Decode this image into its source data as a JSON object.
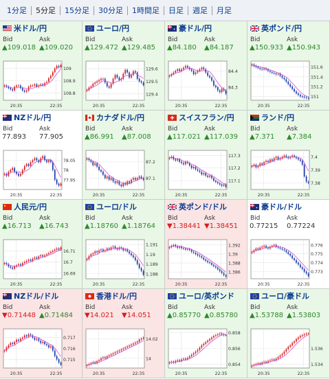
{
  "tabs": [
    {
      "label": "1分足",
      "active": false
    },
    {
      "label": "5分足",
      "active": true
    },
    {
      "label": "15分足",
      "active": false
    },
    {
      "label": "30分足",
      "active": false
    },
    {
      "label": "1時間足",
      "active": false
    },
    {
      "label": "日足",
      "active": false
    },
    {
      "label": "週足",
      "active": false
    },
    {
      "label": "月足",
      "active": false
    }
  ],
  "labels": {
    "bid": "Bid",
    "ask": "Ask"
  },
  "colors": {
    "up": "#2c8a2c",
    "down": "#d42020",
    "candle_up": "#d42020",
    "candle_down": "#1f3fa8",
    "ma": "#d24bd2"
  },
  "pairs": [
    {
      "name": "米ドル/円",
      "flag": "us",
      "trend": "up",
      "bid": "▲109.018",
      "ask": "▲109.020",
      "bid_dir": "up",
      "ask_dir": "up",
      "x_labels": [
        "20:35",
        "22:35"
      ],
      "y_labels": [
        "109",
        "108.9",
        "108.8"
      ],
      "ylim": [
        108.74,
        109.06
      ],
      "series": [
        108.86,
        108.85,
        108.84,
        108.83,
        108.82,
        108.85,
        108.86,
        108.86,
        108.84,
        108.82,
        108.81,
        108.82,
        108.85,
        108.86,
        108.86,
        108.87,
        108.85,
        108.86,
        108.87,
        108.86,
        108.88,
        108.89,
        108.92,
        108.94,
        108.97,
        109.0,
        109.02,
        109.01,
        109.03
      ]
    },
    {
      "name": "ユーロ/円",
      "flag": "eu",
      "trend": "up",
      "bid": "▲129.472",
      "ask": "▲129.485",
      "bid_dir": "up",
      "ask_dir": "up",
      "x_labels": [
        "20:35",
        "22:35"
      ],
      "y_labels": [
        "129.6",
        "129.5",
        "129.4"
      ],
      "ylim": [
        129.35,
        129.66
      ],
      "series": [
        129.43,
        129.45,
        129.46,
        129.48,
        129.49,
        129.5,
        129.51,
        129.52,
        129.52,
        129.49,
        129.46,
        129.45,
        129.48,
        129.52,
        129.55,
        129.53,
        129.51,
        129.52,
        129.56,
        129.59,
        129.57,
        129.53,
        129.55,
        129.58,
        129.57,
        129.52,
        129.5,
        129.49,
        129.47
      ]
    },
    {
      "name": "豪ドル/円",
      "flag": "au",
      "trend": "up",
      "bid": "▲84.180",
      "ask": "▲84.187",
      "bid_dir": "up",
      "ask_dir": "up",
      "x_labels": [
        "20:35",
        "22:35"
      ],
      "y_labels": [
        "84.4",
        "84.3"
      ],
      "ylim": [
        84.22,
        84.46
      ],
      "series": [
        84.37,
        84.38,
        84.39,
        84.4,
        84.41,
        84.4,
        84.41,
        84.42,
        84.43,
        84.42,
        84.41,
        84.4,
        84.38,
        84.39,
        84.4,
        84.41,
        84.42,
        84.41,
        84.39,
        84.37,
        84.36,
        84.34,
        84.31,
        84.3,
        84.28,
        84.27,
        84.29,
        84.28,
        84.26
      ]
    },
    {
      "name": "英ポンド/円",
      "flag": "gb",
      "trend": "up",
      "bid": "▲150.933",
      "ask": "▲150.943",
      "bid_dir": "up",
      "ask_dir": "up",
      "x_labels": [
        "20:35",
        "22:35"
      ],
      "y_labels": [
        "151.6",
        "151.4",
        "151.2",
        "151"
      ],
      "ylim": [
        150.92,
        151.72
      ],
      "series": [
        151.65,
        151.62,
        151.6,
        151.58,
        151.56,
        151.55,
        151.57,
        151.55,
        151.52,
        151.5,
        151.48,
        151.47,
        151.45,
        151.46,
        151.42,
        151.38,
        151.35,
        151.3,
        151.25,
        151.2,
        151.15,
        151.1,
        151.06,
        151.03,
        151.0,
        150.99,
        150.98,
        150.97,
        150.96
      ]
    },
    {
      "name": "NZドル/円",
      "flag": "nz",
      "trend": "neutral",
      "bid": "77.893",
      "ask": "77.905",
      "bid_dir": "flat",
      "ask_dir": "flat",
      "x_labels": [
        "20:35",
        "22:35"
      ],
      "y_labels": [
        "78.05",
        "78",
        "77.95"
      ],
      "ylim": [
        77.9,
        78.1
      ],
      "series": [
        77.98,
        77.97,
        77.99,
        78.0,
        78.01,
        77.99,
        77.98,
        77.97,
        77.98,
        78.0,
        78.02,
        78.03,
        78.02,
        78.04,
        78.05,
        78.06,
        78.05,
        78.04,
        78.06,
        78.07,
        78.05,
        78.04,
        78.05,
        78.04,
        78.0,
        77.95,
        77.93,
        77.92,
        77.93
      ]
    },
    {
      "name": "カナダドル/円",
      "flag": "ca",
      "trend": "up",
      "bid": "▲86.991",
      "ask": "▲87.008",
      "bid_dir": "up",
      "ask_dir": "up",
      "x_labels": [
        "20:35",
        "22:35"
      ],
      "y_labels": [
        "87.2",
        "87.1"
      ],
      "ylim": [
        87.03,
        87.27
      ],
      "series": [
        87.22,
        87.21,
        87.2,
        87.18,
        87.19,
        87.17,
        87.15,
        87.14,
        87.12,
        87.1,
        87.11,
        87.09,
        87.1,
        87.08,
        87.07,
        87.08,
        87.06,
        87.05,
        87.07,
        87.06,
        87.08,
        87.07,
        87.09,
        87.1,
        87.09,
        87.1,
        87.11,
        87.1,
        87.09
      ]
    },
    {
      "name": "スイスフラン/円",
      "flag": "ch",
      "trend": "up",
      "bid": "▲117.021",
      "ask": "▲117.039",
      "bid_dir": "up",
      "ask_dir": "up",
      "x_labels": [
        "20:35",
        "22:35"
      ],
      "y_labels": [
        "117.3",
        "117.2",
        "117.1"
      ],
      "ylim": [
        117.03,
        117.34
      ],
      "series": [
        117.28,
        117.29,
        117.27,
        117.26,
        117.27,
        117.25,
        117.24,
        117.23,
        117.25,
        117.24,
        117.22,
        117.2,
        117.21,
        117.19,
        117.18,
        117.17,
        117.15,
        117.16,
        117.14,
        117.13,
        117.14,
        117.12,
        117.1,
        117.09,
        117.08,
        117.07,
        117.06,
        117.07,
        117.05
      ]
    },
    {
      "name": "ランド/円",
      "flag": "za",
      "trend": "up",
      "bid": "▲7.371",
      "ask": "▲7.384",
      "bid_dir": "up",
      "ask_dir": "up",
      "x_labels": [
        "20:35",
        "22:35"
      ],
      "y_labels": [
        "7.4",
        "7.39",
        "7.38"
      ],
      "ylim": [
        7.375,
        7.405
      ],
      "series": [
        7.393,
        7.394,
        7.392,
        7.393,
        7.395,
        7.394,
        7.396,
        7.397,
        7.396,
        7.398,
        7.397,
        7.399,
        7.4,
        7.398,
        7.399,
        7.4,
        7.401,
        7.4,
        7.399,
        7.4,
        7.401,
        7.4,
        7.399,
        7.398,
        7.397,
        7.394,
        7.385,
        7.381,
        7.38
      ]
    },
    {
      "name": "人民元/円",
      "flag": "cn",
      "trend": "up",
      "bid": "▲16.713",
      "ask": "▲16.743",
      "bid_dir": "up",
      "ask_dir": "up",
      "x_labels": [
        "20:35",
        "22:35"
      ],
      "y_labels": [
        "16.71",
        "16.7",
        "16.69"
      ],
      "ylim": [
        16.685,
        16.72
      ],
      "series": [
        16.699,
        16.698,
        16.696,
        16.695,
        16.694,
        16.696,
        16.697,
        16.698,
        16.697,
        16.699,
        16.7,
        16.701,
        16.702,
        16.701,
        16.703,
        16.704,
        16.703,
        16.705,
        16.706,
        16.705,
        16.706,
        16.707,
        16.708,
        16.709,
        16.71,
        16.711,
        16.712,
        16.711,
        16.713
      ]
    },
    {
      "name": "ユーロ/ドル",
      "flag": "eu",
      "trend": "up",
      "bid": "▲1.18760",
      "ask": "▲1.18764",
      "bid_dir": "up",
      "ask_dir": "up",
      "x_labels": [
        "20:35",
        "22:35"
      ],
      "y_labels": [
        "1.191",
        "1.19",
        "1.189",
        "1.188"
      ],
      "ylim": [
        1.1875,
        1.1915
      ],
      "series": [
        1.1895,
        1.1898,
        1.19,
        1.1901,
        1.1903,
        1.1902,
        1.1904,
        1.1905,
        1.1903,
        1.1904,
        1.1906,
        1.1905,
        1.1907,
        1.1908,
        1.1906,
        1.1905,
        1.1907,
        1.1906,
        1.1904,
        1.1905,
        1.1903,
        1.1901,
        1.1899,
        1.1897,
        1.1894,
        1.189,
        1.1886,
        1.1883,
        1.1879
      ]
    },
    {
      "name": "英ポンド/ドル",
      "flag": "gb",
      "trend": "down",
      "bid": "▼1.38441",
      "ask": "▼1.38451",
      "bid_dir": "down",
      "ask_dir": "down",
      "x_labels": [
        "20:35",
        "22:35"
      ],
      "y_labels": [
        "1.392",
        "1.39",
        "1.388",
        "1.386"
      ],
      "ylim": [
        1.3845,
        1.3932
      ],
      "series": [
        1.3915,
        1.3918,
        1.392,
        1.3917,
        1.3914,
        1.3916,
        1.3913,
        1.3912,
        1.391,
        1.3911,
        1.3909,
        1.3905,
        1.3903,
        1.39,
        1.3897,
        1.3895,
        1.3892,
        1.3888,
        1.3885,
        1.3882,
        1.388,
        1.3876,
        1.3873,
        1.387,
        1.3866,
        1.3862,
        1.3858,
        1.3853,
        1.385
      ]
    },
    {
      "name": "豪ドル/ドル",
      "flag": "au",
      "trend": "neutral",
      "bid": "0.77215",
      "ask": "0.77224",
      "bid_dir": "flat",
      "ask_dir": "flat",
      "x_labels": [
        "20:35",
        "22:35"
      ],
      "y_labels": [
        "0.776",
        "0.775",
        "0.774",
        "0.773"
      ],
      "ylim": [
        0.7722,
        0.7766
      ],
      "series": [
        0.7752,
        0.7754,
        0.7756,
        0.7755,
        0.7757,
        0.7758,
        0.7759,
        0.7757,
        0.7756,
        0.7758,
        0.7759,
        0.776,
        0.7758,
        0.7757,
        0.7756,
        0.7755,
        0.7754,
        0.7752,
        0.775,
        0.7748,
        0.7745,
        0.7743,
        0.774,
        0.7738,
        0.7735,
        0.7733,
        0.773,
        0.7728,
        0.7725
      ]
    },
    {
      "name": "NZドル/ドル",
      "flag": "nz",
      "trend": "down",
      "bid": "▼0.71448",
      "ask": "▲0.71484",
      "bid_dir": "down",
      "ask_dir": "up",
      "x_labels": [
        "20:35",
        "22:35"
      ],
      "y_labels": [
        "0.717",
        "0.716",
        "0.715"
      ],
      "ylim": [
        0.7142,
        0.7178
      ],
      "series": [
        0.7158,
        0.7161,
        0.7163,
        0.7165,
        0.7164,
        0.7166,
        0.7168,
        0.7167,
        0.7169,
        0.717,
        0.7172,
        0.7171,
        0.7173,
        0.7172,
        0.717,
        0.7168,
        0.7169,
        0.7167,
        0.7165,
        0.7166,
        0.7164,
        0.7163,
        0.7161,
        0.7162,
        0.7158,
        0.7153,
        0.715,
        0.7147,
        0.7145
      ]
    },
    {
      "name": "香港ドル/円",
      "flag": "hk",
      "trend": "down",
      "bid": "▼14.021",
      "ask": "▼14.051",
      "bid_dir": "down",
      "ask_dir": "down",
      "x_labels": [
        "20:35",
        "22:35"
      ],
      "y_labels": [
        "14.02",
        "14"
      ],
      "ylim": [
        13.99,
        14.03
      ],
      "series": [
        13.993,
        13.994,
        13.995,
        13.996,
        13.995,
        13.997,
        13.998,
        14.0,
        14.001,
        14.0,
        14.002,
        14.003,
        14.004,
        14.005,
        14.006,
        14.007,
        14.008,
        14.009,
        14.01,
        14.011,
        14.012,
        14.013,
        14.014,
        14.015,
        14.016,
        14.017,
        14.019,
        14.02,
        14.021
      ]
    },
    {
      "name": "ユーロ/英ポンド",
      "flag": "eu",
      "trend": "up",
      "bid": "▲0.85770",
      "ask": "▲0.85780",
      "bid_dir": "up",
      "ask_dir": "up",
      "x_labels": [
        "20:35",
        "22:35"
      ],
      "y_labels": [
        "0.858",
        "0.856",
        "0.854"
      ],
      "ylim": [
        0.8535,
        0.8585
      ],
      "series": [
        0.8542,
        0.8543,
        0.8542,
        0.8544,
        0.8545,
        0.8544,
        0.8546,
        0.8547,
        0.8546,
        0.8548,
        0.855,
        0.8552,
        0.8554,
        0.8556,
        0.8558,
        0.8561,
        0.8564,
        0.8566,
        0.8568,
        0.857,
        0.8572,
        0.8574,
        0.8576,
        0.8577,
        0.8578,
        0.8579,
        0.8578,
        0.8577,
        0.8577
      ]
    },
    {
      "name": "ユーロ/豪ドル",
      "flag": "eu",
      "trend": "up",
      "bid": "▲1.53788",
      "ask": "▲1.53803",
      "bid_dir": "up",
      "ask_dir": "up",
      "x_labels": [
        "20:35",
        "22:35"
      ],
      "y_labels": [
        "1.536",
        "1.534"
      ],
      "ylim": [
        1.5335,
        1.5385
      ],
      "series": [
        1.5338,
        1.5339,
        1.534,
        1.5341,
        1.534,
        1.5342,
        1.5343,
        1.5342,
        1.5344,
        1.5345,
        1.5346,
        1.5345,
        1.5347,
        1.5349,
        1.5351,
        1.5353,
        1.5356,
        1.5359,
        1.5362,
        1.5364,
        1.5367,
        1.5369,
        1.5372,
        1.5374,
        1.5376,
        1.5377,
        1.5378,
        1.5379,
        1.5379
      ]
    }
  ]
}
